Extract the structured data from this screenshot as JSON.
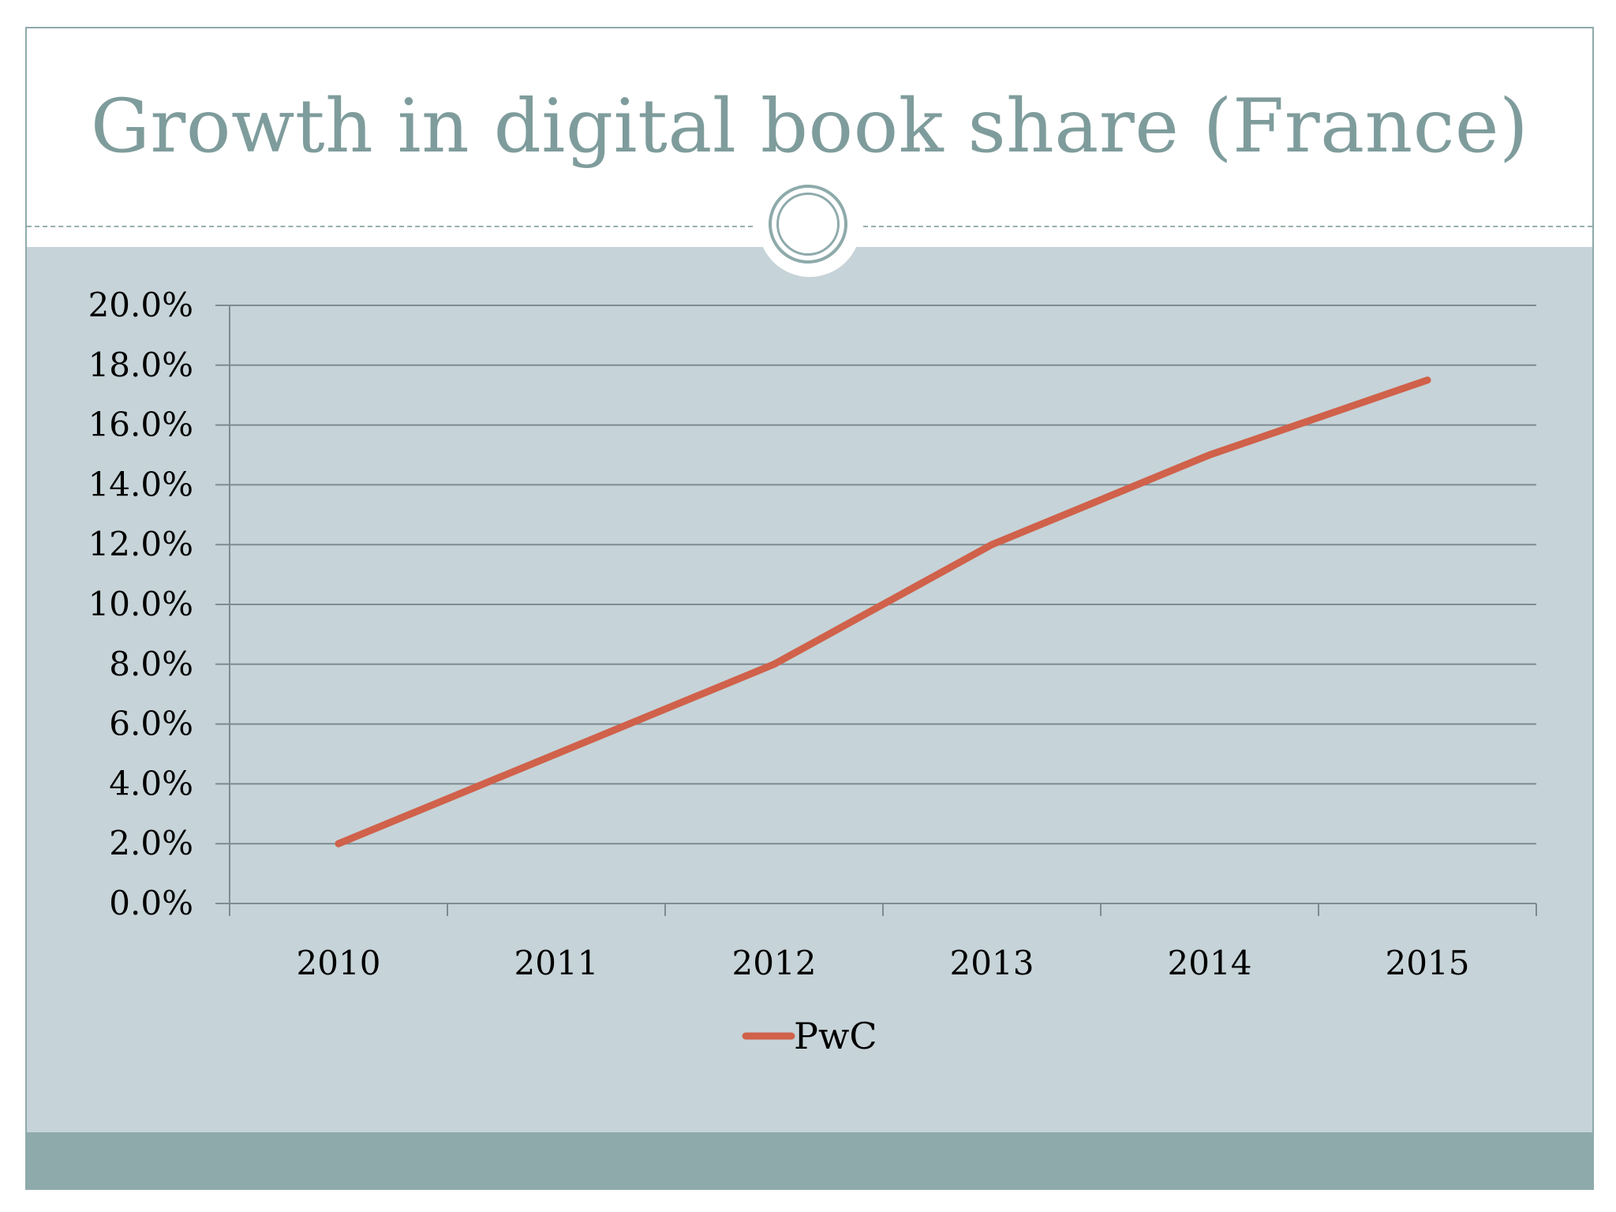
{
  "slide": {
    "title": "Growth in digital book share (France)"
  },
  "colors": {
    "title": "#7f9c9c",
    "panel": "#c6d3d8",
    "band": "#8eaaab",
    "line": "#d0614a",
    "grid": "#7e8c91"
  },
  "chart_data": {
    "type": "line",
    "title": "Growth in digital book share (France)",
    "xlabel": "",
    "ylabel": "",
    "categories": [
      "2010",
      "2011",
      "2012",
      "2013",
      "2014",
      "2015"
    ],
    "series": [
      {
        "name": "PwC",
        "values": [
          2.0,
          5.0,
          8.0,
          12.0,
          15.0,
          17.5
        ]
      }
    ],
    "ylim": [
      0,
      20
    ],
    "y_ticks": [
      "0.0%",
      "2.0%",
      "4.0%",
      "6.0%",
      "8.0%",
      "10.0%",
      "12.0%",
      "14.0%",
      "16.0%",
      "18.0%",
      "20.0%"
    ],
    "grid": true,
    "legend": "bottom"
  }
}
